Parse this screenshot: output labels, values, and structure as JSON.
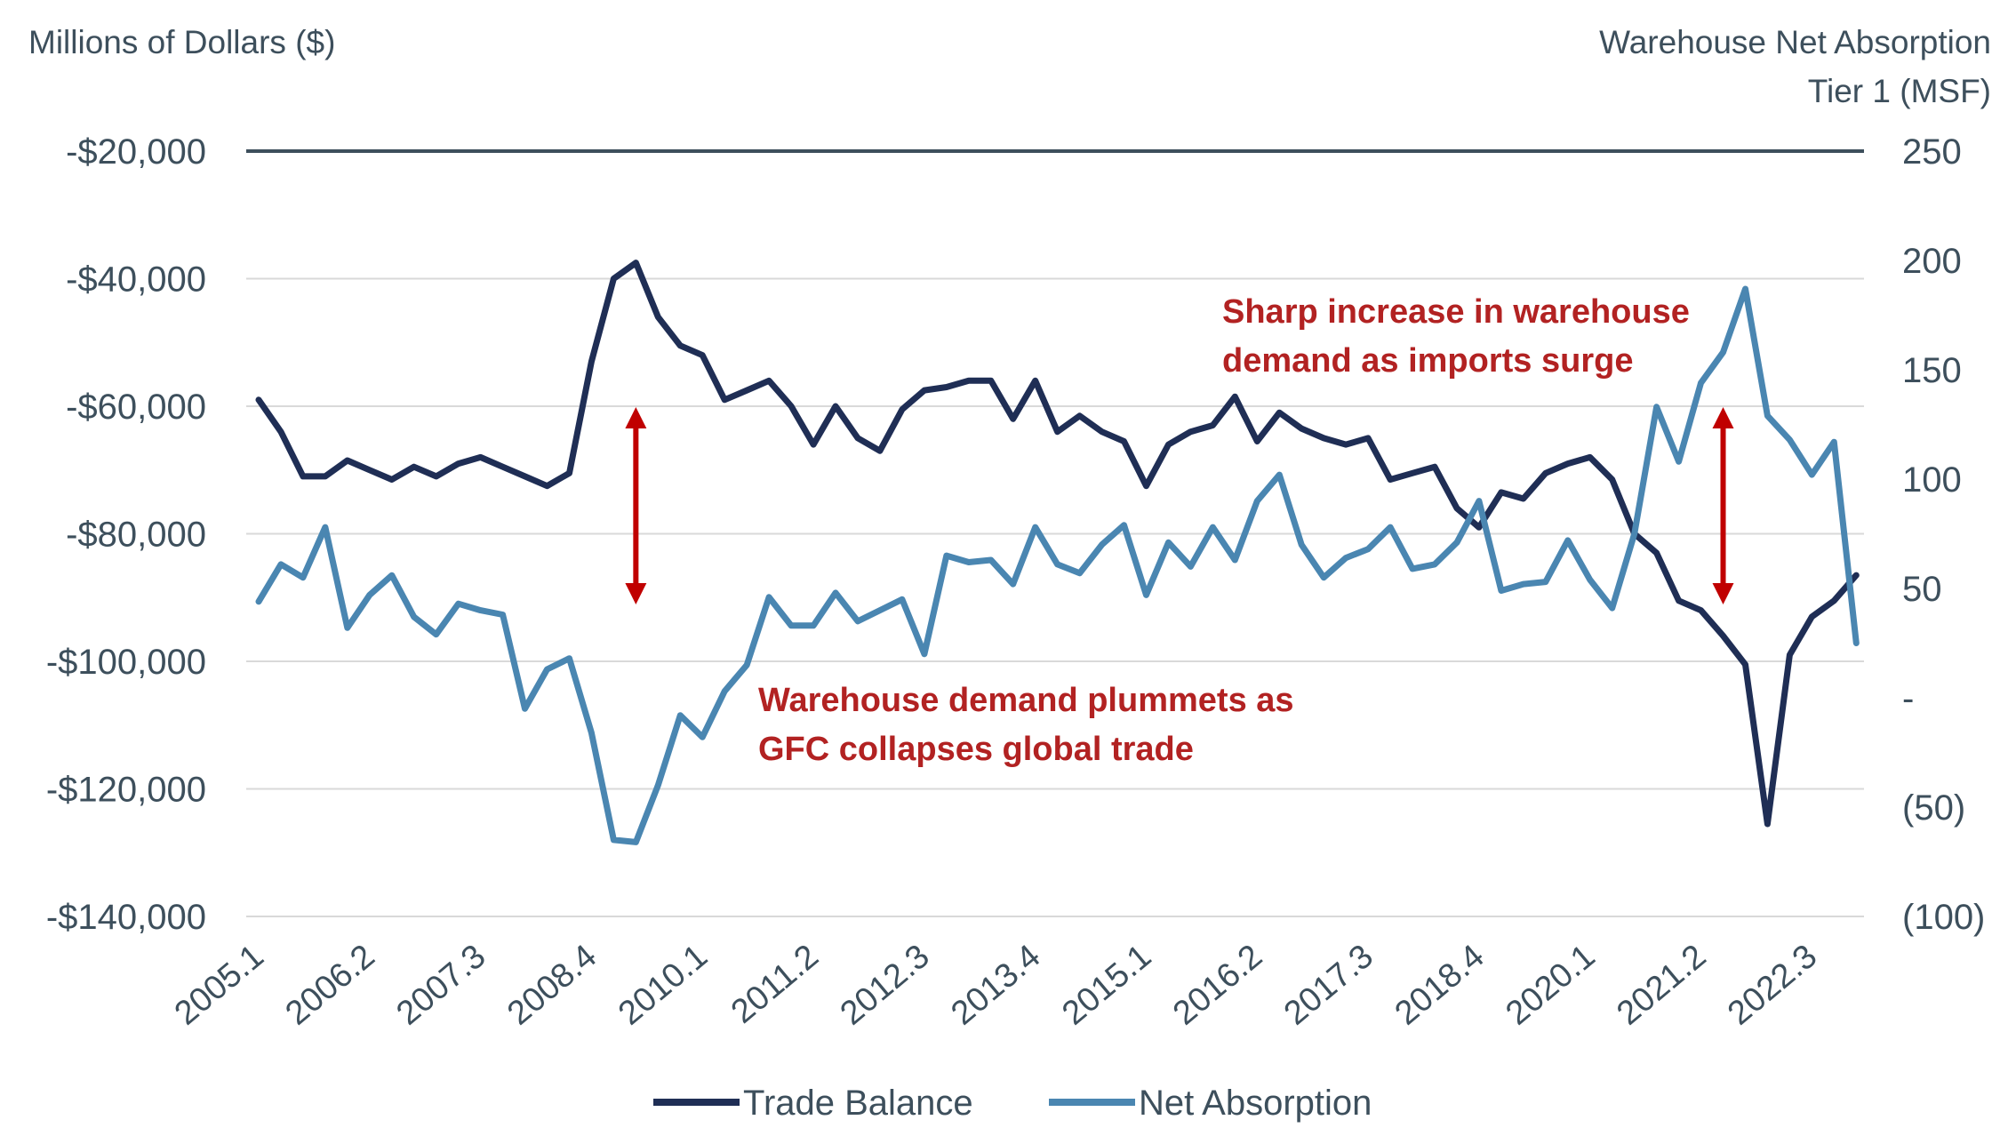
{
  "chart_data": {
    "type": "line",
    "left_axis_title": "Millions of Dollars ($)",
    "right_axis_title_line1": "Warehouse Net Absorption",
    "right_axis_title_line2": "Tier 1 (MSF)",
    "left_ylim": [
      -140000,
      -20000
    ],
    "right_ylim": [
      -100,
      250
    ],
    "left_ticks": [
      {
        "value": -20000,
        "label": "-$20,000"
      },
      {
        "value": -40000,
        "label": "-$40,000"
      },
      {
        "value": -60000,
        "label": "-$60,000"
      },
      {
        "value": -80000,
        "label": "-$80,000"
      },
      {
        "value": -100000,
        "label": "-$100,000"
      },
      {
        "value": -120000,
        "label": "-$120,000"
      },
      {
        "value": -140000,
        "label": "-$140,000"
      }
    ],
    "right_ticks": [
      {
        "value": 250,
        "label": "250"
      },
      {
        "value": 200,
        "label": "200"
      },
      {
        "value": 150,
        "label": "150"
      },
      {
        "value": 100,
        "label": "100"
      },
      {
        "value": 50,
        "label": "50"
      },
      {
        "value": 0,
        "label": "-"
      },
      {
        "value": -50,
        "label": "(50)"
      },
      {
        "value": -100,
        "label": "(100)"
      }
    ],
    "x_ticks": [
      {
        "index": 0,
        "label": "2005.1"
      },
      {
        "index": 5,
        "label": "2006.2"
      },
      {
        "index": 10,
        "label": "2007.3"
      },
      {
        "index": 15,
        "label": "2008.4"
      },
      {
        "index": 20,
        "label": "2010.1"
      },
      {
        "index": 25,
        "label": "2011.2"
      },
      {
        "index": 30,
        "label": "2012.3"
      },
      {
        "index": 35,
        "label": "2013.4"
      },
      {
        "index": 40,
        "label": "2015.1"
      },
      {
        "index": 45,
        "label": "2016.2"
      },
      {
        "index": 50,
        "label": "2017.3"
      },
      {
        "index": 55,
        "label": "2018.4"
      },
      {
        "index": 60,
        "label": "2020.1"
      },
      {
        "index": 65,
        "label": "2021.2"
      },
      {
        "index": 70,
        "label": "2022.3"
      }
    ],
    "series": [
      {
        "name": "Trade Balance",
        "axis": "left",
        "color": "#1f2e55",
        "values": [
          -59000,
          -64000,
          -71000,
          -71000,
          -68500,
          -70000,
          -71500,
          -69500,
          -71000,
          -69000,
          -68000,
          -69500,
          -71000,
          -72500,
          -70500,
          -53000,
          -40000,
          -37500,
          -46000,
          -50500,
          -52000,
          -59000,
          -57500,
          -56000,
          -60000,
          -66000,
          -60000,
          -65000,
          -67000,
          -60500,
          -57500,
          -57000,
          -56000,
          -56000,
          -62000,
          -56000,
          -64000,
          -61500,
          -64000,
          -65500,
          -72500,
          -66000,
          -64000,
          -63000,
          -58500,
          -65500,
          -61000,
          -63500,
          -65000,
          -66000,
          -65000,
          -71500,
          -70500,
          -69500,
          -76000,
          -79000,
          -73500,
          -74500,
          -70500,
          -69000,
          -68000,
          -71500,
          -80000,
          -83000,
          -90500,
          -92000,
          -96000,
          -100500,
          -125500,
          -99000,
          -93000,
          -90500,
          -86500
        ]
      },
      {
        "name": "Net Absorption",
        "axis": "right",
        "color": "#4a86b1",
        "values": [
          44,
          61,
          55,
          78,
          32,
          47,
          56,
          37,
          29,
          43,
          40,
          38,
          -5,
          13,
          18,
          -16,
          -65,
          -66,
          -40,
          -8,
          -18,
          3,
          15,
          46,
          33,
          33,
          48,
          35,
          40,
          45,
          20,
          65,
          62,
          63,
          52,
          78,
          61,
          57,
          70,
          79,
          47,
          71,
          60,
          78,
          63,
          90,
          102,
          70,
          55,
          64,
          68,
          78,
          59,
          61,
          71,
          90,
          49,
          52,
          53,
          72,
          54,
          41,
          75,
          133,
          108,
          144,
          158,
          187,
          129,
          118,
          102,
          117,
          25
        ]
      }
    ],
    "annotations": [
      {
        "line1": "Sharp increase in warehouse",
        "line2": "demand as imports surge"
      },
      {
        "line1": "Warehouse demand plummets as",
        "line2": "GFC collapses global trade"
      }
    ],
    "arrow_color": "#c00000",
    "legend_position": "bottom-center"
  }
}
